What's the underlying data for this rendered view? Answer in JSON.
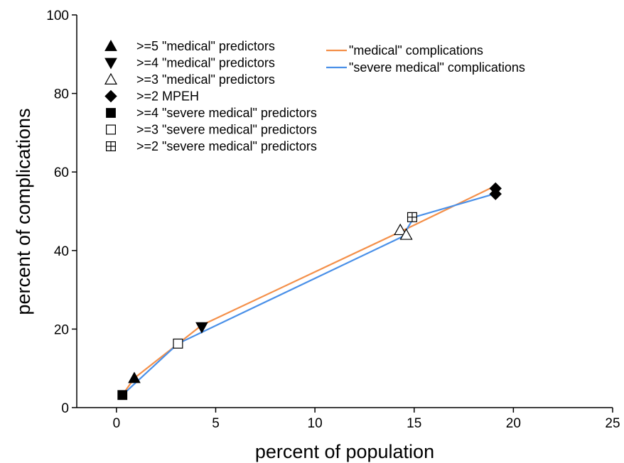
{
  "chart_data": {
    "type": "line",
    "title": "",
    "xlabel": "percent of population",
    "ylabel": "percent of complications",
    "xlim": [
      -2,
      25
    ],
    "ylim": [
      0,
      100
    ],
    "xticks": [
      0,
      5,
      10,
      15,
      20,
      25
    ],
    "yticks": [
      0,
      20,
      40,
      60,
      80,
      100
    ],
    "xtick_labels": [
      "0",
      "5",
      "10",
      "15",
      "20",
      "25"
    ],
    "ytick_labels": [
      "0",
      "20",
      "40",
      "60",
      "80",
      "100"
    ],
    "grid": false,
    "line_legend_placement": "top-center",
    "marker_legend_placement": "top-left",
    "series": [
      {
        "name": "\"medical\" complications",
        "color": "#f4904a",
        "x": [
          0.3,
          0.9,
          4.3,
          14.6,
          19.1
        ],
        "y": [
          3.2,
          7.5,
          21.0,
          45.5,
          56.5
        ]
      },
      {
        "name": "\"severe medical\" complications",
        "color": "#4a90e8",
        "x": [
          0.3,
          3.1,
          14.4,
          15.0,
          19.1
        ],
        "y": [
          3.2,
          16.3,
          43.5,
          48.5,
          54.5
        ]
      }
    ],
    "marker_groups": [
      {
        "label": ">=5 \"medical\" predictors",
        "marker": "triangle-up-filled",
        "x": 0.9,
        "y": 7.5
      },
      {
        "label": ">=4 \"medical\" predictors",
        "marker": "triangle-down-filled",
        "x": 4.3,
        "y": 20.5
      },
      {
        "label": ">=3 \"medical\" predictors",
        "marker": "triangle-up-open",
        "points": [
          [
            14.3,
            45.2
          ],
          [
            14.6,
            44.0
          ]
        ]
      },
      {
        "label": ">=2 MPEH",
        "marker": "diamond-filled",
        "points": [
          [
            19.1,
            55.8
          ],
          [
            19.1,
            54.4
          ]
        ]
      },
      {
        "label": ">=4 \"severe medical\" predictors",
        "marker": "square-filled",
        "x": 0.3,
        "y": 3.2
      },
      {
        "label": ">=3 \"severe medical\" predictors",
        "marker": "square-open",
        "x": 3.1,
        "y": 16.3
      },
      {
        "label": ">=2 \"severe medical\" predictors",
        "marker": "square-cross",
        "x": 14.9,
        "y": 48.5
      }
    ]
  }
}
